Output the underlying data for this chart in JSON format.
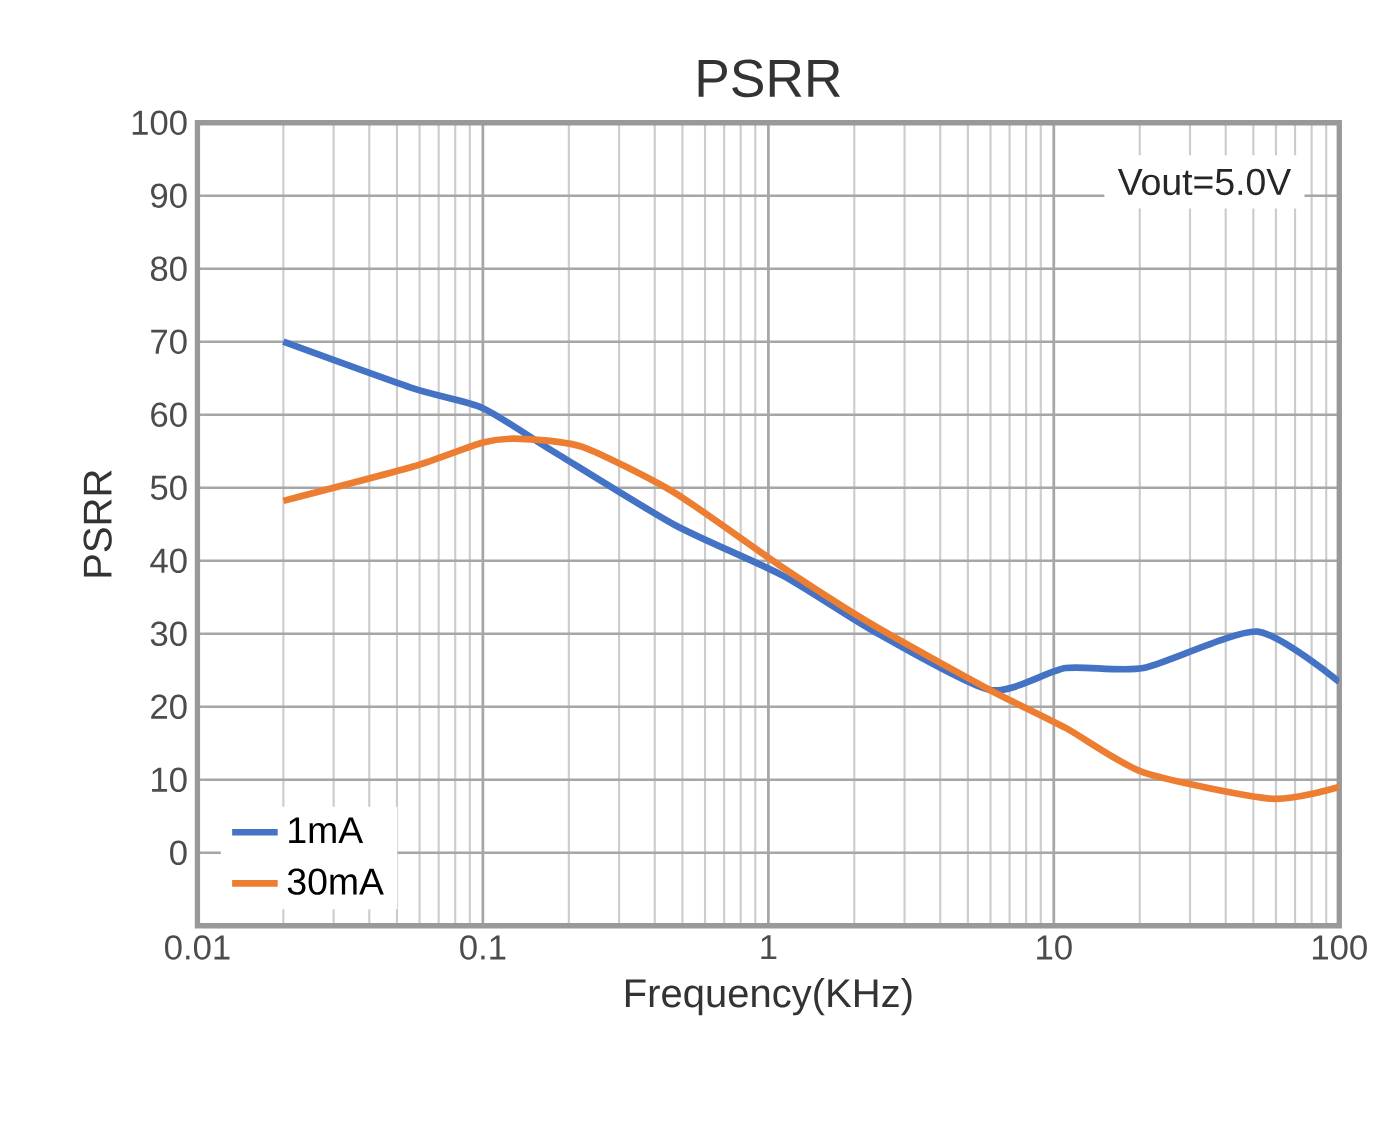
{
  "chart_data": {
    "type": "line",
    "title": "PSRR",
    "xlabel": "Frequency(KHz)",
    "ylabel": "PSRR",
    "log": "x",
    "xlim": [
      0.01,
      100
    ],
    "xticks": [
      0.01,
      0.1,
      1,
      10,
      100
    ],
    "ylim": [
      -10,
      100
    ],
    "yticks": [
      0,
      10,
      20,
      30,
      40,
      50,
      60,
      70,
      80,
      90,
      100
    ],
    "grid": true,
    "legend": "bottom left",
    "annotations": [
      "Vout=5.0V"
    ],
    "series": [
      {
        "name": "1mA",
        "color": "#4472c4",
        "x": [
          0.02,
          0.057,
          0.1,
          0.176,
          0.47,
          1.12,
          2.35,
          5.97,
          11,
          20.6,
          51.6,
          100
        ],
        "values": [
          70,
          63.6,
          60.9,
          55,
          44.9,
          38,
          30.3,
          22.3,
          25.3,
          25.3,
          30.3,
          23.4
        ]
      },
      {
        "name": "30mA",
        "color": "#ed7d31",
        "x": [
          0.02,
          0.057,
          0.1,
          0.135,
          0.223,
          0.47,
          1.12,
          2.35,
          5.97,
          11,
          20.6,
          58,
          100
        ],
        "values": [
          48.2,
          52.9,
          56.2,
          56.7,
          55.6,
          49.3,
          39.1,
          31.1,
          22.3,
          17.1,
          11,
          7.4,
          9
        ]
      }
    ]
  }
}
